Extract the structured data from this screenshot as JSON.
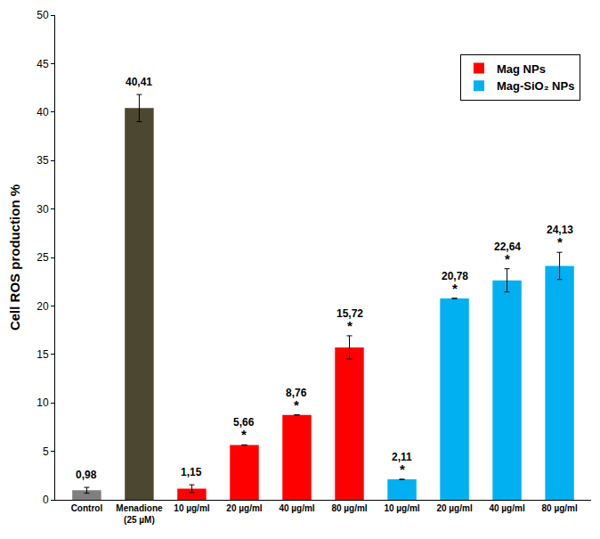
{
  "chart_data": {
    "type": "bar",
    "y_label": "Cell ROS production %",
    "categories": [
      "Control",
      "Menadione\n(25 µM)",
      "10 µg/ml",
      "20 µg/ml",
      "40 µg/ml",
      "80 µg/ml",
      "10 µg/ml",
      "20 µg/ml",
      "40 µg/ml",
      "80 µg/ml"
    ],
    "series": [
      {
        "colors": [
          "#7f7f7f",
          "#4b4730",
          null,
          null,
          null,
          null,
          null,
          null,
          null,
          null
        ],
        "values": [
          0.98,
          40.41,
          null,
          null,
          null,
          null,
          null,
          null,
          null,
          null
        ],
        "value_labels": [
          "0,98",
          "40,41",
          null,
          null,
          null,
          null,
          null,
          null,
          null,
          null
        ],
        "errors": [
          0.3,
          1.4,
          null,
          null,
          null,
          null,
          null,
          null,
          null,
          null
        ]
      },
      {
        "name": "Mag NPs",
        "color": "#ff0000",
        "values": [
          null,
          null,
          1.15,
          5.66,
          8.76,
          15.72,
          null,
          null,
          null,
          null
        ],
        "value_labels": [
          null,
          null,
          "1,15",
          "5,66",
          "8,76",
          "15,72",
          null,
          null,
          null,
          null
        ],
        "errors": [
          null,
          null,
          0.4,
          0,
          0,
          1.2,
          null,
          null,
          null,
          null
        ]
      },
      {
        "name": "Mag-SiO₂ NPs",
        "color": "#00b0f0",
        "values": [
          null,
          null,
          null,
          null,
          null,
          null,
          2.11,
          20.78,
          22.64,
          24.13
        ],
        "value_labels": [
          null,
          null,
          null,
          null,
          null,
          null,
          "2,11",
          "20,78",
          "22,64",
          "24,13"
        ],
        "errors": [
          null,
          null,
          null,
          null,
          null,
          null,
          0,
          0,
          1.2,
          1.4
        ]
      }
    ],
    "annotations": [
      {
        "index": 3,
        "text": "*"
      },
      {
        "index": 4,
        "text": "*"
      },
      {
        "index": 5,
        "text": "*"
      },
      {
        "index": 6,
        "text": "*"
      },
      {
        "index": 7,
        "text": "*"
      },
      {
        "index": 8,
        "text": "*"
      },
      {
        "index": 9,
        "text": "*"
      }
    ],
    "ylim": [
      0,
      50
    ],
    "yticks": [
      0,
      5,
      10,
      15,
      20,
      25,
      30,
      35,
      40,
      45,
      50
    ],
    "grid": false,
    "data_labels": true,
    "legend": "top right"
  }
}
